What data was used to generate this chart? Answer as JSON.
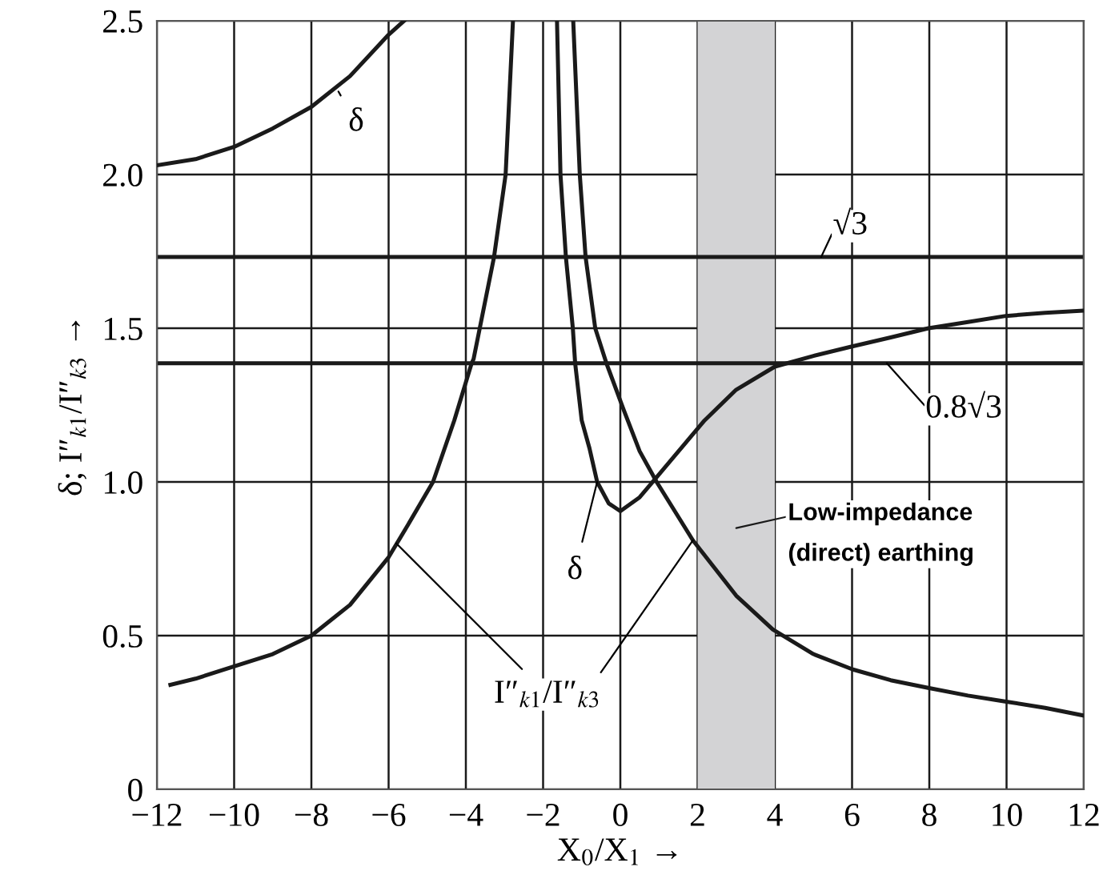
{
  "chart_data": {
    "type": "line",
    "xlabel": "X$_{0}$/X$_{1}$ →",
    "ylabel": "δ; I″$_{k1}$/I″$_{k3}$ →",
    "series": [
      {
        "color": "#1a1a1a",
        "x": [
          -12,
          -11,
          -10,
          -9,
          -8,
          -7,
          -6,
          -5.6
        ],
        "values": [
          2.03,
          2.05,
          2.09,
          2.15,
          2.22,
          2.32,
          2.455,
          2.5
        ]
      },
      {
        "color": "#1a1a1a",
        "x": [
          -1.64,
          -1.55,
          -1.41,
          -1.23,
          -1.17,
          -1.0,
          -0.8,
          -0.6,
          -0.3,
          0,
          0.5,
          0.94,
          2.18,
          3,
          4,
          5,
          5.98,
          7,
          7.98,
          9,
          9.98,
          11,
          12
        ],
        "values": [
          2.5,
          2.0,
          1.732,
          1.5,
          1.386,
          1.2,
          1.11,
          1.0,
          0.93,
          0.905,
          0.95,
          1.015,
          1.2,
          1.3,
          1.375,
          1.41,
          1.44,
          1.47,
          1.5,
          1.52,
          1.54,
          1.55,
          1.557
        ]
      },
      {
        "color": "#1a1a1a",
        "x": [
          -11.65,
          -11,
          -10,
          -9,
          -8,
          -7,
          -6,
          -5.5,
          -4.85,
          -4.3,
          -3.85,
          -3.8,
          -3.27,
          -2.97,
          -2.78
        ],
        "values": [
          0.34,
          0.36,
          0.4,
          0.44,
          0.5,
          0.6,
          0.755,
          0.86,
          1.0,
          1.2,
          1.386,
          1.4,
          1.732,
          2.0,
          2.5
        ]
      },
      {
        "color": "#1a1a1a",
        "x": [
          -1.22,
          -1.05,
          -0.9,
          -0.65,
          -0.36,
          0.1,
          0.5,
          0.94,
          1.88,
          3,
          3.95,
          5,
          6.02,
          7,
          7.97,
          9,
          9.96,
          11,
          12
        ],
        "values": [
          2.5,
          2.0,
          1.732,
          1.5,
          1.386,
          1.23,
          1.1,
          1.0,
          0.81,
          0.63,
          0.52,
          0.44,
          0.39,
          0.355,
          0.33,
          0.305,
          0.286,
          0.265,
          0.24
        ]
      }
    ],
    "annotations": [
      {
        "text": "δ",
        "x": -7.3,
        "y": 2.27
      },
      {
        "text": "δ",
        "x": -0.6,
        "y": 1.0
      },
      {
        "text": "I″$_{k1}$/I″$_{k3}$",
        "x": -5.8,
        "y": 0.8
      }
    ],
    "ref_lines": [
      {
        "axis": "y",
        "value": 1.732,
        "label": "√3",
        "color": "#1a1a1a"
      },
      {
        "axis": "y",
        "value": 1.386,
        "label": "0.8√3",
        "color": "#1a1a1a"
      }
    ],
    "bands": [
      {
        "axis": "x",
        "from": 2,
        "to": 4,
        "label": "Low-impedance\n(direct) earthing",
        "color": "#d3d3d5"
      }
    ],
    "xlim": [
      -12,
      12
    ],
    "xticks": [
      {
        "value": -12,
        "label": "−12"
      },
      {
        "value": -10,
        "label": "−10"
      },
      {
        "value": -8,
        "label": "−8"
      },
      {
        "value": -6,
        "label": "−6"
      },
      {
        "value": -4,
        "label": "−4"
      },
      {
        "value": -2,
        "label": "−2"
      },
      0,
      2,
      4,
      6,
      8,
      10,
      12
    ],
    "ylim": [
      0,
      2.5
    ],
    "yticks": [
      0,
      0.5,
      {
        "value": 1,
        "label": "1.0"
      },
      1.5,
      {
        "value": 2,
        "label": "2.0"
      },
      2.5
    ],
    "grid": true,
    "line_style": "solid",
    "marker": "none"
  }
}
